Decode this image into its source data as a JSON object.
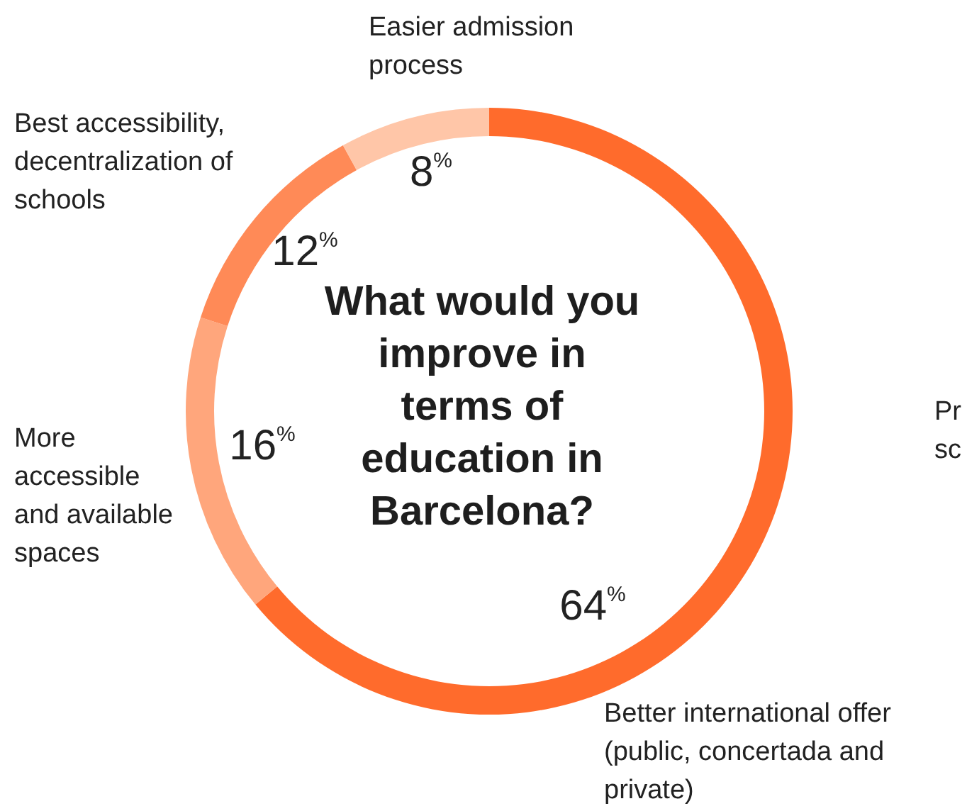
{
  "chart_data": {
    "type": "donut",
    "title": "What would you improve in terms of education in Barcelona?",
    "categories": [
      "Better international offer (public, concertada and private)",
      "More accessible and available spaces",
      "Best accessibility, decentralization of schools",
      "Easier admission process"
    ],
    "values": [
      64,
      16,
      12,
      8
    ],
    "colors": [
      "#ff6b2c",
      "#ffa67c",
      "#ff8a57",
      "#ffc6a8"
    ],
    "value_labels": [
      "64%",
      "16%",
      "12%",
      "8%"
    ],
    "annotations": [
      "Pr sc"
    ]
  }
}
